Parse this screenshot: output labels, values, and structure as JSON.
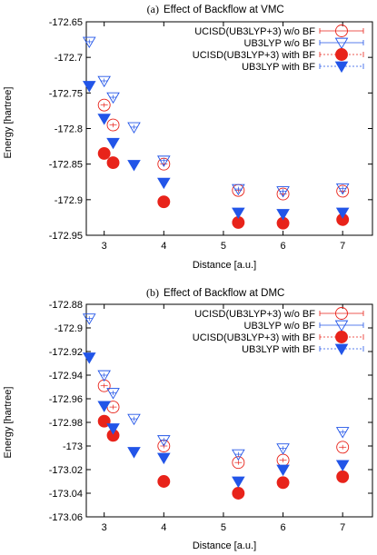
{
  "chart_data": [
    {
      "type": "scatter",
      "panel_label": "(a)",
      "title": "Effect of Backflow at VMC",
      "xlabel": "Distance [a.u.]",
      "ylabel": "Energy [hartree]",
      "xlim": [
        2.7,
        7.5
      ],
      "ylim": [
        -172.95,
        -172.65
      ],
      "xticks": [
        3,
        4,
        5,
        6,
        7
      ],
      "yticks": [
        -172.65,
        -172.7,
        -172.75,
        -172.8,
        -172.85,
        -172.9,
        -172.95
      ],
      "ytick_labels": [
        "-172.65",
        "-172.7",
        "-172.75",
        "-172.8",
        "-172.85",
        "-172.9",
        "-172.95"
      ],
      "grid": false,
      "legend_position": "top-right",
      "series": [
        {
          "name": "UCISD(UB3LYP+3) w/o BF",
          "marker": "circle-open",
          "color": "#e8231a",
          "x": [
            3.0,
            3.15,
            4.0,
            5.25,
            6.0,
            7.0
          ],
          "y": [
            -172.767,
            -172.795,
            -172.85,
            -172.887,
            -172.892,
            -172.888
          ]
        },
        {
          "name": "UB3LYP w/o BF",
          "marker": "triangle-down-open",
          "color": "#2255e8",
          "x": [
            2.75,
            3.0,
            3.15,
            3.5,
            4.0,
            5.25,
            6.0,
            7.0
          ],
          "y": [
            -172.678,
            -172.733,
            -172.756,
            -172.798,
            -172.845,
            -172.885,
            -172.888,
            -172.884
          ]
        },
        {
          "name": "UCISD(UB3LYP+3) with BF",
          "marker": "circle-filled",
          "color": "#e8231a",
          "x": [
            3.0,
            3.15,
            4.0,
            5.25,
            6.0,
            7.0
          ],
          "y": [
            -172.835,
            -172.848,
            -172.903,
            -172.932,
            -172.933,
            -172.928
          ]
        },
        {
          "name": "UB3LYP with BF",
          "marker": "triangle-down-filled",
          "color": "#2255e8",
          "x": [
            2.75,
            3.0,
            3.15,
            3.5,
            4.0,
            5.25,
            6.0,
            7.0
          ],
          "y": [
            -172.74,
            -172.786,
            -172.82,
            -172.851,
            -172.876,
            -172.918,
            -172.92,
            -172.918
          ]
        }
      ]
    },
    {
      "type": "scatter",
      "panel_label": "(b)",
      "title": "Effect of Backflow at DMC",
      "xlabel": "Distance [a.u.]",
      "ylabel": "Energy [hartree]",
      "xlim": [
        2.7,
        7.5
      ],
      "ylim": [
        -173.06,
        -172.88
      ],
      "xticks": [
        3,
        4,
        5,
        6,
        7
      ],
      "yticks": [
        -172.88,
        -172.9,
        -172.92,
        -172.94,
        -172.96,
        -172.98,
        -173,
        -173.02,
        -173.04,
        -173.06
      ],
      "ytick_labels": [
        "-172.88",
        "-172.9",
        "-172.92",
        "-172.94",
        "-172.96",
        "-172.98",
        "-173",
        "-173.02",
        "-173.04",
        "-173.06"
      ],
      "grid": false,
      "legend_position": "top-right",
      "series": [
        {
          "name": "UCISD(UB3LYP+3) w/o BF",
          "marker": "circle-open",
          "color": "#e8231a",
          "x": [
            3.0,
            3.15,
            4.0,
            5.25,
            6.0,
            7.0
          ],
          "y": [
            -172.949,
            -172.967,
            -173.0,
            -173.014,
            -173.012,
            -173.001
          ]
        },
        {
          "name": "UB3LYP w/o BF",
          "marker": "triangle-down-open",
          "color": "#2255e8",
          "x": [
            2.75,
            3.0,
            3.15,
            3.5,
            4.0,
            5.25,
            6.0,
            7.0
          ],
          "y": [
            -172.892,
            -172.94,
            -172.955,
            -172.977,
            -172.995,
            -173.007,
            -173.002,
            -172.988
          ]
        },
        {
          "name": "UCISD(UB3LYP+3) with BF",
          "marker": "circle-filled",
          "color": "#e8231a",
          "x": [
            3.0,
            3.15,
            4.0,
            5.25,
            6.0,
            7.0
          ],
          "y": [
            -172.979,
            -172.991,
            -173.03,
            -173.04,
            -173.031,
            -173.026
          ]
        },
        {
          "name": "UB3LYP with BF",
          "marker": "triangle-down-filled",
          "color": "#2255e8",
          "x": [
            2.75,
            3.0,
            3.15,
            3.5,
            4.0,
            5.25,
            6.0,
            7.0
          ],
          "y": [
            -172.925,
            -172.966,
            -172.985,
            -173.005,
            -173.01,
            -173.03,
            -173.02,
            -173.016
          ]
        }
      ]
    }
  ]
}
